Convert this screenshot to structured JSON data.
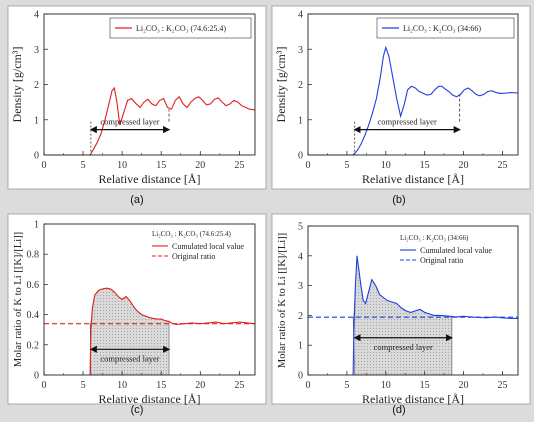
{
  "charts": [
    {
      "caption": "(a)",
      "chart_data": {
        "type": "line",
        "xlabel": "Relative distance [Å]",
        "ylabel": "Density [g/cm³]",
        "xlim": [
          0,
          27
        ],
        "ylim": [
          0,
          4
        ],
        "xticks": [
          0,
          5,
          10,
          15,
          20,
          25
        ],
        "yticks": [
          0,
          1,
          2,
          3,
          4
        ],
        "series": [
          {
            "name": "Li₂CO₃ : K₂CO₃ (74.6:25.4)",
            "color": "#e02020",
            "x": [
              0,
              5.9,
              6.3,
              6.8,
              7.3,
              7.8,
              8.3,
              8.7,
              9.0,
              9.3,
              9.7,
              10.2,
              10.7,
              11.2,
              11.8,
              12.3,
              12.8,
              13.3,
              13.8,
              14.3,
              14.8,
              15.3,
              15.8,
              16.3,
              16.8,
              17.3,
              17.8,
              18.3,
              18.8,
              19.3,
              19.8,
              20.3,
              20.8,
              21.3,
              21.8,
              22.3,
              22.8,
              23.3,
              23.8,
              24.3,
              24.8,
              25.3,
              25.8,
              26.3,
              27.0
            ],
            "y": [
              0,
              0,
              0.15,
              0.35,
              0.6,
              1.0,
              1.45,
              1.82,
              1.9,
              1.55,
              0.85,
              1.2,
              1.55,
              1.6,
              1.45,
              1.35,
              1.5,
              1.58,
              1.45,
              1.4,
              1.55,
              1.6,
              1.35,
              1.3,
              1.55,
              1.65,
              1.45,
              1.35,
              1.5,
              1.6,
              1.65,
              1.55,
              1.42,
              1.45,
              1.58,
              1.62,
              1.5,
              1.4,
              1.45,
              1.55,
              1.5,
              1.4,
              1.35,
              1.3,
              1.28
            ]
          }
        ],
        "legend_position": "top-right",
        "annotation": {
          "text": "compressed layer",
          "from": 6,
          "to": 16
        }
      }
    },
    {
      "caption": "(b)",
      "chart_data": {
        "type": "line",
        "xlabel": "Relative distance [Å]",
        "ylabel": "Density [g/cm³]",
        "xlim": [
          0,
          27
        ],
        "ylim": [
          0,
          4
        ],
        "xticks": [
          0,
          5,
          10,
          15,
          20,
          25
        ],
        "yticks": [
          0,
          1,
          2,
          3,
          4
        ],
        "series": [
          {
            "name": "Li₂CO₃ : K₂CO₃ (34:66)",
            "color": "#2040e0",
            "x": [
              0,
              5.8,
              6.3,
              6.8,
              7.3,
              7.8,
              8.3,
              8.8,
              9.3,
              9.7,
              10.0,
              10.4,
              10.9,
              11.4,
              11.9,
              12.4,
              12.8,
              13.3,
              13.8,
              14.3,
              14.8,
              15.3,
              15.8,
              16.3,
              16.8,
              17.2,
              17.6,
              18.1,
              18.6,
              19.1,
              19.6,
              20.1,
              20.6,
              21.1,
              21.6,
              22.1,
              22.6,
              23.1,
              23.6,
              24.1,
              24.6,
              25.1,
              25.6,
              26.1,
              27.0
            ],
            "y": [
              0,
              0,
              0.12,
              0.3,
              0.55,
              0.85,
              1.2,
              1.6,
              2.2,
              2.8,
              3.05,
              2.8,
              2.2,
              1.6,
              1.1,
              1.45,
              1.85,
              1.95,
              1.9,
              1.8,
              1.75,
              1.7,
              1.72,
              1.85,
              1.95,
              1.95,
              1.88,
              1.8,
              1.7,
              1.65,
              1.72,
              1.85,
              1.9,
              1.82,
              1.72,
              1.68,
              1.72,
              1.8,
              1.82,
              1.78,
              1.75,
              1.75,
              1.76,
              1.77,
              1.76
            ]
          }
        ],
        "legend_position": "top-right",
        "annotation": {
          "text": "compressed layer",
          "from": 6,
          "to": 19.5
        }
      }
    },
    {
      "caption": "(c)",
      "chart_data": {
        "type": "line",
        "xlabel": "Relative distance [Å]",
        "ylabel": "Molar ratio of K to Li [[K]/[Li]]",
        "xlim": [
          0,
          27
        ],
        "ylim": [
          0,
          1
        ],
        "xticks": [
          0,
          5,
          10,
          15,
          20,
          25
        ],
        "yticks": [
          0,
          0.2,
          0.4,
          0.6,
          0.8,
          1
        ],
        "ytick_labels": [
          "0",
          "0.2",
          "0.4",
          "0.6",
          "0.8",
          "1"
        ],
        "series": [
          {
            "name": "Cumulated local value",
            "color": "#e02020",
            "x": [
              5.9,
              6.0,
              6.2,
              6.5,
              7.0,
              7.5,
              8.0,
              8.5,
              9.0,
              9.5,
              10.0,
              10.5,
              11.0,
              11.5,
              12.0,
              12.5,
              13.0,
              13.5,
              14.0,
              14.5,
              15.0,
              15.5,
              16.0,
              16.5,
              17.0,
              18.0,
              19.0,
              20.0,
              21.0,
              22.0,
              23.0,
              24.0,
              25.0,
              26.0,
              27.0
            ],
            "y": [
              0.0,
              0.3,
              0.45,
              0.53,
              0.56,
              0.57,
              0.575,
              0.57,
              0.55,
              0.52,
              0.5,
              0.52,
              0.49,
              0.45,
              0.42,
              0.4,
              0.39,
              0.38,
              0.375,
              0.37,
              0.37,
              0.36,
              0.355,
              0.34,
              0.335,
              0.34,
              0.345,
              0.34,
              0.345,
              0.35,
              0.34,
              0.345,
              0.35,
              0.345,
              0.34
            ]
          },
          {
            "name": "Original ratio",
            "color": "#e02020",
            "dashed": true,
            "x": [
              0,
              27
            ],
            "y": [
              0.34,
              0.34
            ]
          }
        ],
        "legend_title": "Li₂CO₃ : K₂CO₃ (74.6:25.4)",
        "legend_position": "top-right",
        "shaded_region": {
          "from": 6,
          "to": 16,
          "baseline": 0.34
        },
        "annotation": {
          "text": "compressed layer",
          "from": 6,
          "to": 16
        }
      }
    },
    {
      "caption": "(d)",
      "chart_data": {
        "type": "line",
        "xlabel": "Relative distance [Å]",
        "ylabel": "Molar ratio of K to Li [[K]/[Li]]",
        "xlim": [
          0,
          27
        ],
        "ylim": [
          0,
          5
        ],
        "xticks": [
          0,
          5,
          10,
          15,
          20,
          25
        ],
        "yticks": [
          0,
          1,
          2,
          3,
          4,
          5
        ],
        "series": [
          {
            "name": "Cumulated local value",
            "color": "#2040e0",
            "x": [
              5.8,
              5.9,
              6.1,
              6.3,
              6.5,
              6.8,
              7.1,
              7.4,
              7.8,
              8.2,
              8.7,
              9.2,
              9.7,
              10.2,
              10.8,
              11.4,
              12.0,
              12.6,
              13.2,
              13.8,
              14.4,
              15.0,
              15.6,
              16.2,
              17.0,
              18.0,
              19.0,
              20.0,
              21.0,
              22.0,
              23.0,
              24.0,
              25.0,
              26.0,
              27.0
            ],
            "y": [
              0.0,
              1.5,
              3.0,
              4.0,
              3.6,
              3.0,
              2.5,
              2.4,
              2.8,
              3.2,
              3.0,
              2.7,
              2.6,
              2.5,
              2.45,
              2.4,
              2.25,
              2.15,
              2.1,
              2.15,
              2.2,
              2.1,
              2.05,
              2.0,
              2.0,
              1.98,
              1.95,
              1.97,
              1.95,
              1.93,
              1.92,
              1.95,
              1.92,
              1.9,
              1.9
            ]
          },
          {
            "name": "Original ratio",
            "color": "#2040e0",
            "dashed": true,
            "x": [
              0,
              27
            ],
            "y": [
              1.94,
              1.94
            ]
          }
        ],
        "legend_title": "Li₂CO₃ : K₂CO₃ (34:66)",
        "legend_position": "top-right",
        "shaded_region": {
          "from": 6,
          "to": 18.5,
          "baseline": 1.94
        },
        "annotation": {
          "text": "compressed layer",
          "from": 6,
          "to": 18.5
        }
      }
    }
  ],
  "colors": {
    "background": "#dcdcdc",
    "panel": "#ffffff",
    "frame": "#444444",
    "shade": "#d9d9d9"
  }
}
